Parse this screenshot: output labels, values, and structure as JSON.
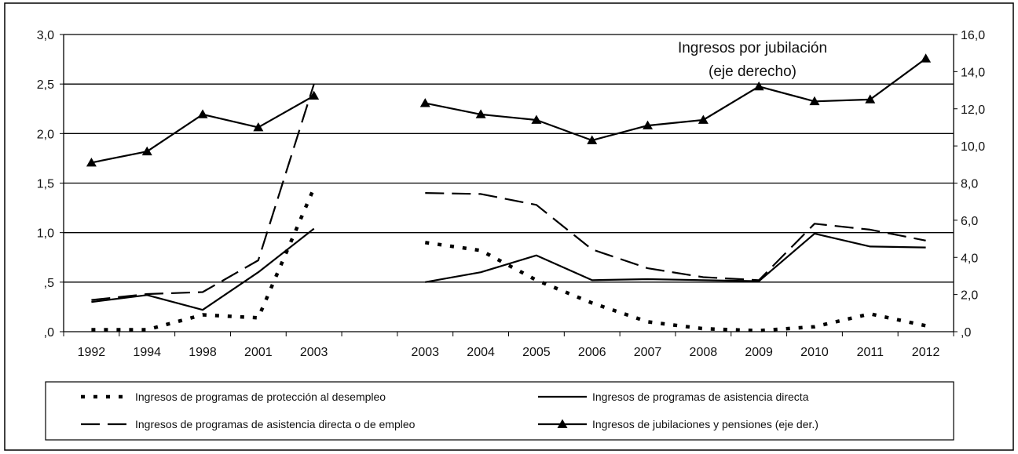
{
  "chart_data": {
    "type": "line",
    "title": "",
    "annotation": [
      "Ingresos por jubilación",
      "(eje derecho)"
    ],
    "categories": [
      "1992",
      "1994",
      "1998",
      "2001",
      "2003",
      "",
      "2003",
      "2004",
      "2005",
      "2006",
      "2007",
      "2008",
      "2009",
      "2010",
      "2011",
      "2012"
    ],
    "left_axis": {
      "ylim": [
        0,
        3.0
      ],
      "ticks": [
        ",0",
        ",5",
        "1,0",
        "1,5",
        "2,0",
        "2,5",
        "3,0"
      ]
    },
    "right_axis": {
      "ylim": [
        0,
        16.0
      ],
      "ticks": [
        ",0",
        "2,0",
        "4,0",
        "6,0",
        "8,0",
        "10,0",
        "12,0",
        "14,0",
        "16,0"
      ]
    },
    "grid": "horizontal",
    "series": [
      {
        "name": "Ingresos de programas de protección al desempleo",
        "style": "dotted",
        "axis": "left",
        "segments": [
          {
            "x": [
              0,
              1,
              2,
              3,
              4
            ],
            "values": [
              0.02,
              0.02,
              0.17,
              0.14,
              1.45
            ]
          },
          {
            "x": [
              6,
              7,
              8,
              9,
              10,
              11,
              12,
              13,
              14,
              15
            ],
            "values": [
              0.9,
              0.82,
              0.52,
              0.29,
              0.1,
              0.03,
              0.01,
              0.05,
              0.18,
              0.06
            ]
          }
        ]
      },
      {
        "name": "Ingresos de programas de asistencia directa",
        "style": "solid",
        "axis": "left",
        "segments": [
          {
            "x": [
              0,
              1,
              2,
              3,
              4
            ],
            "values": [
              0.3,
              0.37,
              0.22,
              0.6,
              1.04
            ]
          },
          {
            "x": [
              6,
              7,
              8,
              9,
              10,
              11,
              12,
              13,
              14,
              15
            ],
            "values": [
              0.5,
              0.6,
              0.77,
              0.52,
              0.53,
              0.52,
              0.51,
              0.99,
              0.86,
              0.85
            ]
          }
        ]
      },
      {
        "name": "Ingresos de programas de asistencia directa o de empleo",
        "style": "dashed",
        "axis": "left",
        "segments": [
          {
            "x": [
              0,
              1,
              2,
              3,
              4
            ],
            "values": [
              0.32,
              0.38,
              0.4,
              0.72,
              2.5
            ]
          },
          {
            "x": [
              6,
              7,
              8,
              9,
              10,
              11,
              12,
              13,
              14,
              15
            ],
            "values": [
              1.4,
              1.39,
              1.28,
              0.83,
              0.64,
              0.55,
              0.52,
              1.09,
              1.03,
              0.92
            ]
          }
        ]
      },
      {
        "name": "Ingresos de jubilaciones y pensiones (eje der.)",
        "style": "solid-triangle",
        "axis": "right",
        "segments": [
          {
            "x": [
              0,
              1,
              2,
              3,
              4
            ],
            "values": [
              9.1,
              9.7,
              11.7,
              11.0,
              12.7
            ]
          },
          {
            "x": [
              6,
              7,
              8,
              9,
              10,
              11,
              12,
              13,
              14,
              15
            ],
            "values": [
              12.3,
              11.7,
              11.4,
              10.3,
              11.1,
              11.4,
              13.2,
              12.4,
              12.5,
              14.7
            ]
          }
        ]
      }
    ],
    "legend_placement": "bottom"
  },
  "colors": {
    "line": "#000000",
    "frame": "#000000"
  }
}
